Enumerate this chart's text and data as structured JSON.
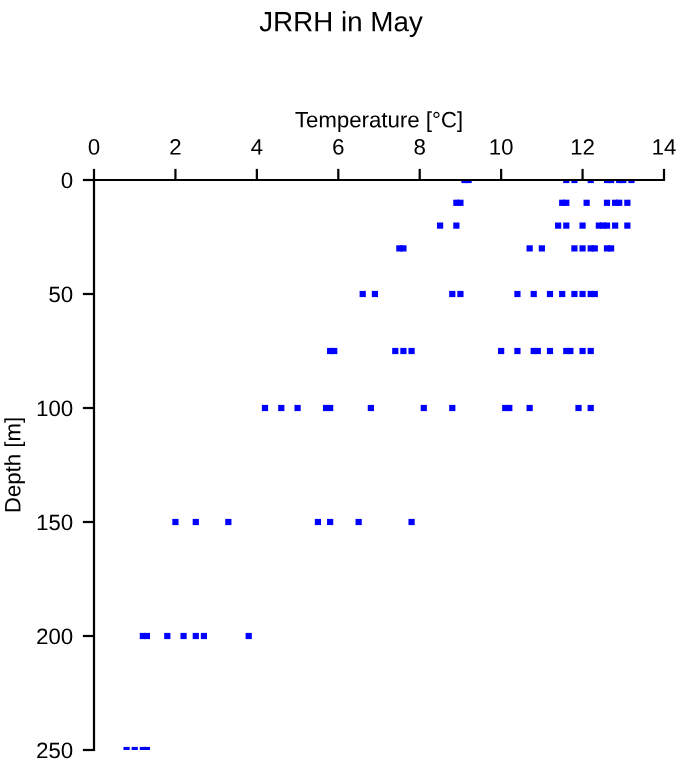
{
  "chart_data": {
    "type": "scatter",
    "title": "JRRH in May",
    "xlabel": "Temperature [°C]",
    "ylabel": "Depth [m]",
    "xlim": [
      0,
      14
    ],
    "xticks": [
      0,
      2,
      4,
      6,
      8,
      10,
      12,
      14
    ],
    "ylim": [
      250,
      0
    ],
    "yticks": [
      0,
      50,
      100,
      150,
      200,
      250
    ],
    "grid": false,
    "marker": "square",
    "series": [
      {
        "color": "#0000ff",
        "x": [
          9.1,
          9.2,
          11.6,
          11.8,
          12.2,
          12.6,
          12.7,
          12.9,
          13.0,
          13.2,
          8.9,
          9.0,
          11.5,
          11.6,
          12.1,
          12.6,
          12.8,
          12.9,
          13.1,
          8.5,
          8.9,
          11.4,
          11.6,
          12.0,
          12.4,
          12.5,
          12.6,
          12.8,
          13.1,
          7.5,
          7.6,
          10.7,
          11.0,
          11.8,
          12.0,
          12.2,
          12.3,
          12.6,
          12.7,
          6.6,
          6.9,
          8.8,
          9.0,
          10.4,
          10.8,
          11.2,
          11.5,
          11.8,
          12.0,
          12.2,
          12.3,
          5.8,
          5.9,
          7.4,
          7.6,
          7.8,
          10.0,
          10.4,
          10.8,
          10.9,
          11.2,
          11.6,
          11.7,
          12.0,
          12.2,
          4.2,
          4.6,
          5.0,
          5.7,
          5.8,
          6.8,
          8.1,
          8.8,
          10.1,
          10.2,
          10.7,
          11.9,
          12.2,
          2.0,
          2.5,
          3.3,
          5.5,
          5.8,
          6.5,
          7.8,
          1.2,
          1.3,
          1.8,
          2.2,
          2.5,
          2.7,
          3.8,
          0.8,
          1.0,
          1.2,
          1.3
        ],
        "values": [
          0,
          0,
          0,
          0,
          0,
          0,
          0,
          0,
          0,
          0,
          10,
          10,
          10,
          10,
          10,
          10,
          10,
          10,
          10,
          20,
          20,
          20,
          20,
          20,
          20,
          20,
          20,
          20,
          20,
          30,
          30,
          30,
          30,
          30,
          30,
          30,
          30,
          30,
          30,
          50,
          50,
          50,
          50,
          50,
          50,
          50,
          50,
          50,
          50,
          50,
          50,
          75,
          75,
          75,
          75,
          75,
          75,
          75,
          75,
          75,
          75,
          75,
          75,
          75,
          75,
          100,
          100,
          100,
          100,
          100,
          100,
          100,
          100,
          100,
          100,
          100,
          100,
          100,
          150,
          150,
          150,
          150,
          150,
          150,
          150,
          200,
          200,
          200,
          200,
          200,
          200,
          200,
          250,
          250,
          250,
          250
        ]
      }
    ]
  }
}
